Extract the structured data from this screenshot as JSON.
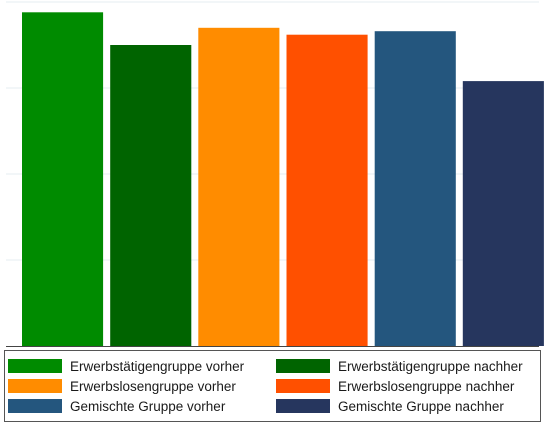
{
  "chart_data": {
    "type": "bar",
    "title": "",
    "xlabel": "",
    "ylabel": "",
    "ylim": [
      0,
      100
    ],
    "grid": true,
    "legend_position": "bottom",
    "categories": [
      "Erwerbstätigengruppe vorher",
      "Erwerbstätigengruppe nachher",
      "Erwerbslosengruppe vorher",
      "Erwerbslosengruppe nachher",
      "Gemischte Gruppe vorher",
      "Gemischte Gruppe nachher"
    ],
    "values": [
      97,
      87.5,
      92.5,
      90.5,
      91.5,
      77
    ],
    "colors": [
      "#008b00",
      "#006400",
      "#ff8c00",
      "#ff5000",
      "#24567e",
      "#26365e"
    ]
  },
  "legend": {
    "items": [
      {
        "label": "Erwerbstätigengruppe vorher",
        "color": "#008b00"
      },
      {
        "label": "Erwerbstätigengruppe nachher",
        "color": "#006400"
      },
      {
        "label": "Erwerbslosengruppe vorher",
        "color": "#ff8c00"
      },
      {
        "label": "Erwerbslosengruppe nachher",
        "color": "#ff5000"
      },
      {
        "label": "Gemischte Gruppe vorher",
        "color": "#24567e"
      },
      {
        "label": "Gemischte Gruppe nachher",
        "color": "#26365e"
      }
    ]
  }
}
